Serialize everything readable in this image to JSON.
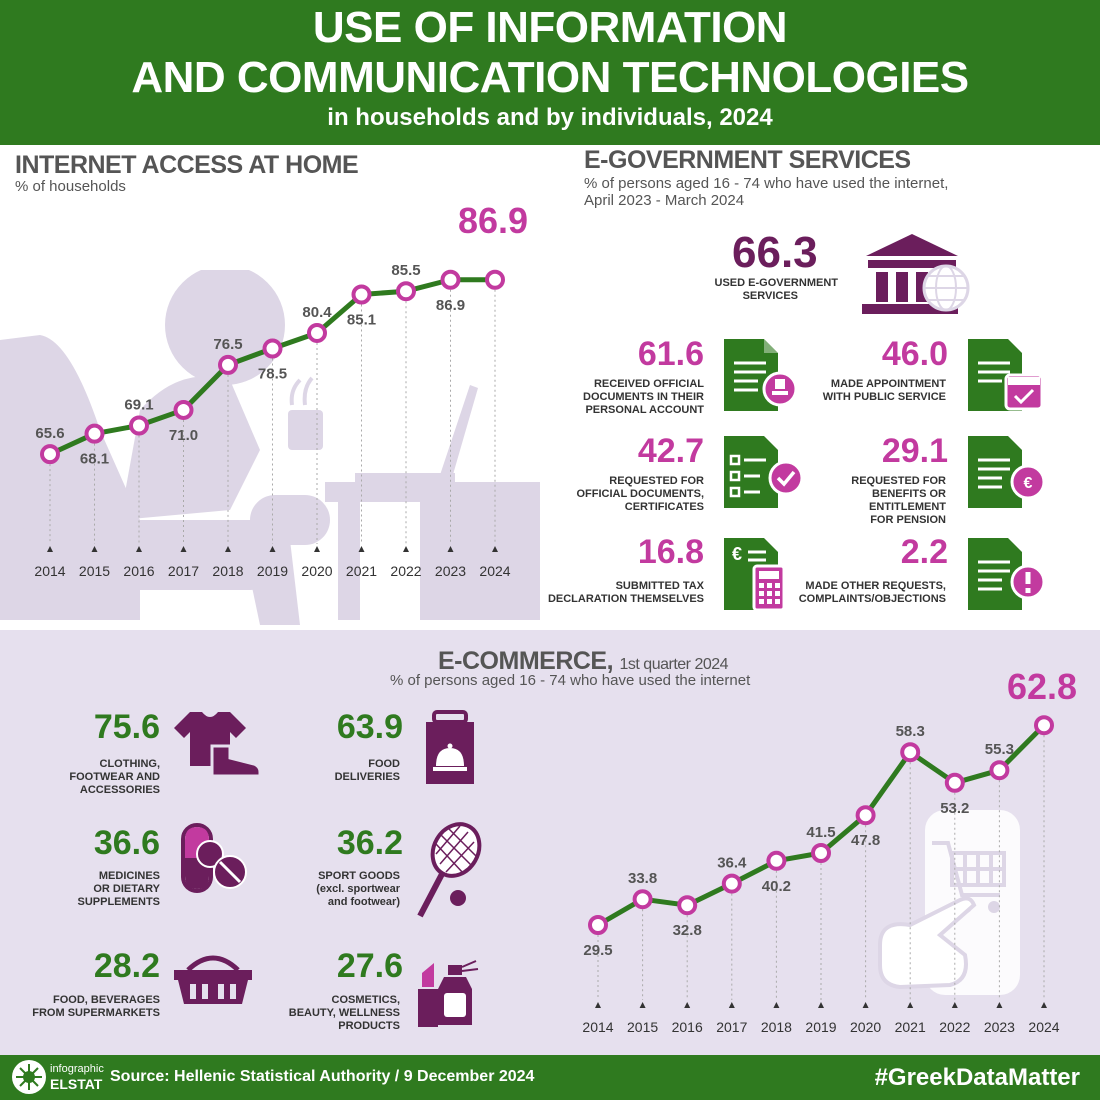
{
  "header": {
    "line1": "USE OF INFORMATION",
    "line2": "AND COMMUNICATION TECHNOLOGIES",
    "line3": "in households and by individuals, 2024"
  },
  "internet_access": {
    "title": "INTERNET ACCESS AT HOME",
    "subtitle": "% of households",
    "highlight": "86.9"
  },
  "egov": {
    "title": "E-GOVERNMENT SERVICES",
    "subtitle_line1": "% of persons aged 16 - 74 who have used the internet,",
    "subtitle_line2": "April 2023 - March 2024",
    "main_value": "66.3",
    "main_label_line1": "USED e-GOVERNMENT",
    "main_label_line2": "SERVICES",
    "items": [
      {
        "value": "61.6",
        "label": [
          "RECEIVED OFFICIAL",
          "DOCUMENTS IN THEIR",
          "PERSONAL ACCOUNT"
        ],
        "icon": "document-stamp-icon"
      },
      {
        "value": "46.0",
        "label": [
          "MADE APPOINTMENT",
          "WITH PUBLIC SERVICE"
        ],
        "icon": "document-calendar-icon"
      },
      {
        "value": "42.7",
        "label": [
          "REQUESTED FOR",
          "OFFICIAL DOCUMENTS,",
          "CERTIFICATES"
        ],
        "icon": "checklist-icon"
      },
      {
        "value": "29.1",
        "label": [
          "REQUESTED FOR",
          "BENEFITS OR",
          "ENTITLEMENT",
          "FOR PENSION"
        ],
        "icon": "document-euro-icon"
      },
      {
        "value": "16.8",
        "label": [
          "SUBMITTED TAX",
          "DECLARATION THEMSELVES"
        ],
        "icon": "tax-calculator-icon"
      },
      {
        "value": "2.2",
        "label": [
          "MADE OTHER REQUESTS,",
          "COMPLAINTS/OBJECTIONS"
        ],
        "icon": "document-alert-icon"
      }
    ]
  },
  "ecommerce": {
    "title": "E-COMMERCE,",
    "title_period": "1st quarter 2024",
    "subtitle": "% of persons aged 16 - 74 who have used the internet",
    "highlight": "62.8",
    "items": [
      {
        "value": "75.6",
        "label": [
          "CLOTHING,",
          "FOOTWEAR AND",
          "ACCESSORIES"
        ],
        "icon": "clothing-icon"
      },
      {
        "value": "63.9",
        "label": [
          "FOOD",
          "DELIVERIES"
        ],
        "icon": "food-bag-icon"
      },
      {
        "value": "36.6",
        "label": [
          "MEDICINES",
          "OR DIETARY",
          "SUPPLEMENTS"
        ],
        "icon": "pills-icon"
      },
      {
        "value": "36.2",
        "label": [
          "SPORT GOODS",
          "(excl. sportwear",
          "and footwear)"
        ],
        "icon": "tennis-racket-icon"
      },
      {
        "value": "28.2",
        "label": [
          "FOOD, BEVERAGES",
          "FROM SUPERMARKETS"
        ],
        "icon": "basket-icon"
      },
      {
        "value": "27.6",
        "label": [
          "COSMETICS,",
          "BEAUTY, WELLNESS",
          "PRODUCTS"
        ],
        "icon": "cosmetics-icon"
      }
    ]
  },
  "footer": {
    "logo_line1": "infographic",
    "logo_line2": "ELSTAT",
    "source": "Source: Hellenic Statistical Authority / 9 December 2024",
    "hashtag": "#GreekDataMatter"
  },
  "colors": {
    "green": "#2f7a1f",
    "magenta": "#c23a9f",
    "purple": "#6b1e5c",
    "lavender": "#e6e0ee",
    "silhouette": "#ddd6e6"
  },
  "chart_data": [
    {
      "type": "line",
      "name": "internet-access",
      "x": [
        "2014",
        "2015",
        "2016",
        "2017",
        "2018",
        "2019",
        "2020",
        "2021",
        "2022",
        "2023",
        "2024"
      ],
      "values": [
        65.6,
        68.1,
        69.1,
        71.0,
        76.5,
        78.5,
        80.4,
        85.1,
        85.5,
        86.9,
        86.9
      ],
      "labels": [
        "65.6",
        "68.1",
        "69.1",
        "71.0",
        "76.5",
        "78.5",
        "80.4",
        "85.1",
        "85.5",
        "86.9",
        ""
      ],
      "label_pos": [
        "above",
        "below",
        "above",
        "below",
        "above",
        "below",
        "above",
        "below",
        "above",
        "below",
        "above"
      ],
      "ylim": [
        60,
        92
      ]
    },
    {
      "type": "line",
      "name": "e-commerce",
      "x": [
        "2014",
        "2015",
        "2016",
        "2017",
        "2018",
        "2019",
        "2020",
        "2021",
        "2022",
        "2023",
        "2024"
      ],
      "values": [
        29.5,
        33.8,
        32.8,
        36.4,
        40.2,
        41.5,
        47.8,
        58.3,
        53.2,
        55.3,
        62.8
      ],
      "labels": [
        "29.5",
        "33.8",
        "32.8",
        "36.4",
        "40.2",
        "41.5",
        "47.8",
        "58.3",
        "53.2",
        "55.3",
        ""
      ],
      "label_pos": [
        "below",
        "above",
        "below",
        "above",
        "below",
        "above",
        "below",
        "above",
        "below",
        "above",
        "above"
      ],
      "ylim": [
        22,
        68
      ]
    }
  ]
}
